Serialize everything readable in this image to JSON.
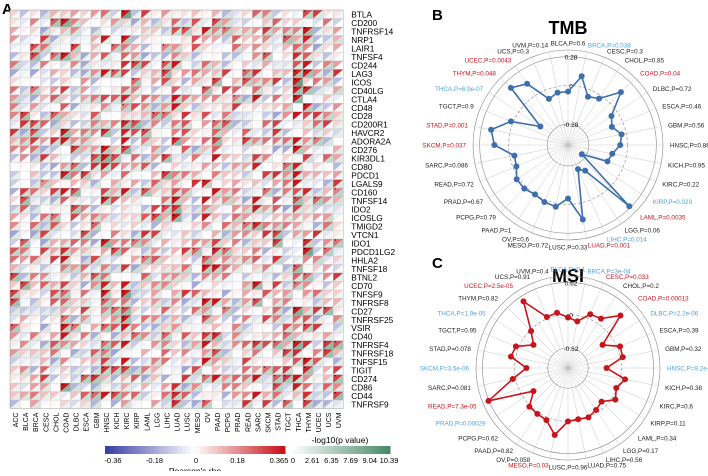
{
  "figure": {
    "panel_a_label": "A",
    "panel_b_label": "B",
    "panel_c_label": "C"
  },
  "chart_data": [
    {
      "type": "heatmap",
      "panel": "A",
      "columns": [
        "ACC",
        "BLCA",
        "BRCA",
        "CESC",
        "CHOL",
        "COAD",
        "DLBC",
        "ESCA",
        "GBM",
        "HNSC",
        "KICH",
        "KIRC",
        "KIRP",
        "LAML",
        "LGG",
        "LIHC",
        "LUAD",
        "LUSC",
        "MESO",
        "OV",
        "PAAD",
        "PCPG",
        "PRAD",
        "READ",
        "SARC",
        "SKCM",
        "STAD",
        "TGCT",
        "THCA",
        "THYM",
        "UCEC",
        "UCS",
        "UVM"
      ],
      "rows": [
        "BTLA",
        "CD200",
        "TNFRSF14",
        "NRP1",
        "LAIR1",
        "TNFSF4",
        "CD244",
        "LAG3",
        "ICOS",
        "CD40LG",
        "CTLA4",
        "CD48",
        "CD28",
        "CD200R1",
        "HAVCR2",
        "ADORA2A",
        "CD276",
        "KIR3DL1",
        "CD80",
        "PDCD1",
        "LGALS9",
        "CD160",
        "TNFSF14",
        "IDO2",
        "ICOSLG",
        "TMIGD2",
        "VTCN1",
        "IDO1",
        "PDCD1LG2",
        "HHLA2",
        "TNFSF18",
        "BTNL2",
        "CD70",
        "TNFSF9",
        "TNFRSF8",
        "CD27",
        "TNFRSF25",
        "VSIR",
        "CD40",
        "TNFRSF4",
        "TNFRSF18",
        "TNFSF15",
        "TIGIT",
        "CD274",
        "CD86",
        "CD44",
        "TNFRSF9"
      ],
      "rho_legend": {
        "title": "Pearson's rho",
        "ticks": [
          "-0.36",
          "-0.18",
          "0",
          "0.18",
          "0.365"
        ]
      },
      "p_legend": {
        "title": "-log10(p value)",
        "ticks": [
          "0",
          "2.61",
          "6.35",
          "7.69",
          "9.04",
          "10.39"
        ]
      },
      "colors": {
        "negative": "#3b3fa8",
        "positive": "#c8141b",
        "neutral": "#ffffff",
        "p_low": "#ffffff",
        "p_high": "#4a8a6a"
      }
    },
    {
      "type": "radar",
      "panel": "B",
      "title": "TMB",
      "rings": [
        "0.28",
        "0",
        "-0.28"
      ],
      "r_range": [
        -0.5,
        0.3
      ],
      "series_color": "#3d6fad",
      "categories": [
        {
          "name": "BLCA",
          "label": "BLCA,P=0.6",
          "color": "black",
          "value": -0.05
        },
        {
          "name": "BRCA",
          "label": "BRCA,P=0.038",
          "color": "blue",
          "value": 0.09
        },
        {
          "name": "CESC",
          "label": "CESC,P=0.3",
          "color": "black",
          "value": -0.06
        },
        {
          "name": "CHOL",
          "label": "CHOL,P=0.85",
          "color": "black",
          "value": -0.03
        },
        {
          "name": "COAD",
          "label": "COAD,P=0.04",
          "color": "red",
          "value": 0.13
        },
        {
          "name": "DLBC",
          "label": "DLBC,P=0.72",
          "color": "black",
          "value": -0.06
        },
        {
          "name": "ESCA",
          "label": "ESCA,P=0.46",
          "color": "black",
          "value": -0.1
        },
        {
          "name": "GBM",
          "label": "GBM,P=0.56",
          "color": "black",
          "value": -0.04
        },
        {
          "name": "HNSC",
          "label": "HNSC,P=0.86",
          "color": "black",
          "value": -0.06
        },
        {
          "name": "KICH",
          "label": "KICH,P=0.95",
          "color": "black",
          "value": -0.12
        },
        {
          "name": "KIRC",
          "label": "KIRC,P=0.22",
          "color": "black",
          "value": -0.14
        },
        {
          "name": "KIRP",
          "label": "KIRP,P=0.029",
          "color": "blue",
          "value": -0.36
        },
        {
          "name": "LAML",
          "label": "LAML,P=0.0035",
          "color": "red",
          "value": 0.23
        },
        {
          "name": "LGG",
          "label": "LGG,P=0.06",
          "color": "black",
          "value": -0.24
        },
        {
          "name": "LIHC",
          "label": "LIHC,P=0.014",
          "color": "blue",
          "value": -0.28
        },
        {
          "name": "LUAD",
          "label": "LUAD,P=0.001",
          "color": "red",
          "value": 0.14
        },
        {
          "name": "LUSC",
          "label": "LUSC,P=0.33",
          "color": "black",
          "value": -0.05
        },
        {
          "name": "MESO",
          "label": "MESO,P=0.72",
          "color": "black",
          "value": 0.03
        },
        {
          "name": "OV",
          "label": "OV,P=0.6",
          "color": "black",
          "value": 0.02
        },
        {
          "name": "PAAD",
          "label": "PAAD,P=1",
          "color": "black",
          "value": 0.0
        },
        {
          "name": "PCPG",
          "label": "PCPG,P=0.79",
          "color": "black",
          "value": 0.02
        },
        {
          "name": "PRAD",
          "label": "PRAD,P=0.67",
          "color": "black",
          "value": 0.02
        },
        {
          "name": "READ",
          "label": "READ,P=0.72",
          "color": "black",
          "value": -0.03
        },
        {
          "name": "SARC",
          "label": "SARC,P=0.086",
          "color": "black",
          "value": -0.04
        },
        {
          "name": "SKCM",
          "label": "SKCM,P=0.037",
          "color": "red",
          "value": 0.12
        },
        {
          "name": "STAD",
          "label": "STAD,P=0.001",
          "color": "red",
          "value": 0.16
        },
        {
          "name": "TGCT",
          "label": "TGCT,P=0.9",
          "color": "black",
          "value": 0.02
        },
        {
          "name": "THCA",
          "label": "THCA,P=6.9e-07",
          "color": "blue",
          "value": -0.22
        },
        {
          "name": "THYM",
          "label": "THYM,P=0.048",
          "color": "red",
          "value": 0.18
        },
        {
          "name": "UCEC",
          "label": "UCEC,P=0.0043",
          "color": "red",
          "value": 0.12
        },
        {
          "name": "UCS",
          "label": "UCS,P=0.3",
          "color": "black",
          "value": -0.08
        },
        {
          "name": "UVM",
          "label": "UVM,P=0.14",
          "color": "black",
          "value": -0.05
        }
      ]
    },
    {
      "type": "radar",
      "panel": "C",
      "title": "MSI",
      "rings": [
        "0.62",
        "0",
        "-0.62"
      ],
      "r_range": [
        -0.9,
        0.65
      ],
      "series_color": "#c8141b",
      "categories": [
        {
          "name": "BLCA",
          "label": "BLCA,P=0.1",
          "color": "blue",
          "value": -0.05
        },
        {
          "name": "BRCA",
          "label": "BRCA,P=3e-04",
          "color": "blue",
          "value": -0.1
        },
        {
          "name": "CESC",
          "label": "CESC,P=0.033",
          "color": "red",
          "value": 0.08
        },
        {
          "name": "CHOL",
          "label": "CHOL,P=0.2",
          "color": "black",
          "value": 0.1
        },
        {
          "name": "COAD",
          "label": "COAD,P=0.00013",
          "color": "red",
          "value": 0.35
        },
        {
          "name": "DLBC",
          "label": "DLBC,P=2.2e-06",
          "color": "blue",
          "value": -0.2
        },
        {
          "name": "ESCA",
          "label": "ESCA,P=0.39",
          "color": "black",
          "value": 0.05
        },
        {
          "name": "GBM",
          "label": "GBM,P=0.32",
          "color": "black",
          "value": 0.04
        },
        {
          "name": "HNSC",
          "label": "HNSC,P=9.2e-13",
          "color": "blue",
          "value": -0.25
        },
        {
          "name": "KICH",
          "label": "KICH,P=0.38",
          "color": "black",
          "value": 0.08
        },
        {
          "name": "KIRC",
          "label": "KIRC,P=0.6",
          "color": "black",
          "value": -0.02
        },
        {
          "name": "KIRP",
          "label": "KIRP,P=0.11",
          "color": "black",
          "value": 0.06
        },
        {
          "name": "LAML",
          "label": "LAML,P=0.34",
          "color": "black",
          "value": -0.1
        },
        {
          "name": "LGG",
          "label": "LGG,P=0.17",
          "color": "black",
          "value": -0.05
        },
        {
          "name": "LIHC",
          "label": "LIHC,P=0.56",
          "color": "black",
          "value": 0.0
        },
        {
          "name": "LUAD",
          "label": "LUAD,P=0.75",
          "color": "black",
          "value": -0.02
        },
        {
          "name": "LUSC",
          "label": "LUSC,P=0.96",
          "color": "black",
          "value": 0.0
        },
        {
          "name": "MESO",
          "label": "MESO,P=0.03",
          "color": "red",
          "value": 0.25
        },
        {
          "name": "OV",
          "label": "OV,P=0.058",
          "color": "black",
          "value": 0.05
        },
        {
          "name": "PAAD",
          "label": "PAAD,P=0.82",
          "color": "black",
          "value": 0.03
        },
        {
          "name": "PCPG",
          "label": "PCPG,P=0.62",
          "color": "black",
          "value": 0.02
        },
        {
          "name": "PRAD",
          "label": "PRAD,P=0.00029",
          "color": "blue",
          "value": -0.2
        },
        {
          "name": "READ",
          "label": "READ,P=7.3e-05",
          "color": "red",
          "value": 0.55
        },
        {
          "name": "SARC",
          "label": "SARC,P=0.081",
          "color": "black",
          "value": 0.05
        },
        {
          "name": "SKCM",
          "label": "SKCM,P=3.5e-06",
          "color": "blue",
          "value": -0.2
        },
        {
          "name": "STAD",
          "label": "STAD,P=0.078",
          "color": "black",
          "value": 0.08
        },
        {
          "name": "TGCT",
          "label": "TGCT,P=0.95",
          "color": "black",
          "value": 0.05
        },
        {
          "name": "THCA",
          "label": "THCA,P=1.9e-05",
          "color": "blue",
          "value": -0.2
        },
        {
          "name": "THYM",
          "label": "THYM,P=0.82",
          "color": "black",
          "value": -0.02
        },
        {
          "name": "UCEC",
          "label": "UCEC,P=2.5e-05",
          "color": "red",
          "value": 0.45
        },
        {
          "name": "UCS",
          "label": "UCS,P=0.91",
          "color": "black",
          "value": 0.03
        },
        {
          "name": "UVM",
          "label": "UVM,P=0.4",
          "color": "black",
          "value": 0.05
        }
      ]
    }
  ]
}
